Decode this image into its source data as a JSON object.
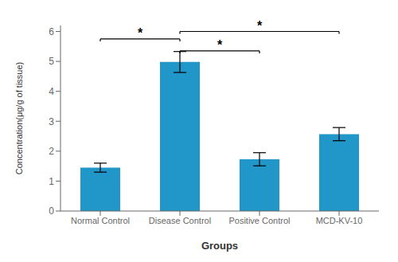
{
  "chart_data": {
    "type": "bar",
    "categories": [
      "Normal Control",
      "Disease Control",
      "Positive Control",
      "MCD-KV-10"
    ],
    "values": [
      1.45,
      4.98,
      1.73,
      2.57
    ],
    "errors": [
      0.15,
      0.35,
      0.22,
      0.22
    ],
    "color": "#2196c8",
    "xlabel": "Groups",
    "ylabel": "Concentration(μg/g of tissue)",
    "ylim": [
      0,
      6.2
    ],
    "yticks": [
      0,
      1,
      2,
      3,
      4,
      5,
      6
    ],
    "grid": false,
    "annotations": [
      {
        "from": "Normal Control",
        "to": "Disease Control",
        "y": 5.75,
        "label": "*"
      },
      {
        "from": "Disease Control",
        "to": "Positive Control",
        "y": 5.35,
        "label": "*"
      },
      {
        "from": "Disease Control",
        "to": "MCD-KV-10",
        "y": 6.0,
        "label": "*"
      }
    ]
  }
}
